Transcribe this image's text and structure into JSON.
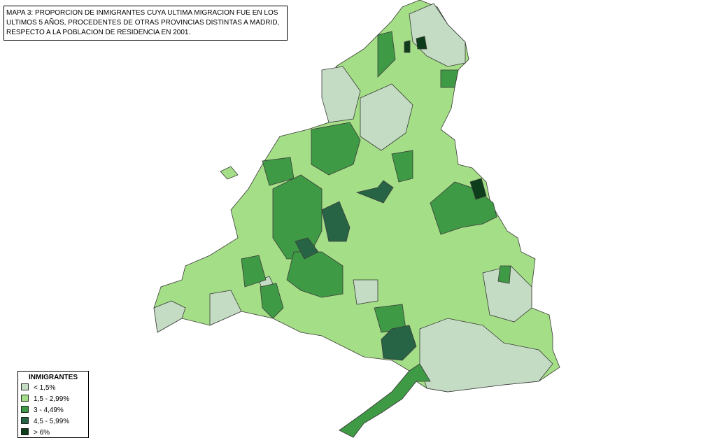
{
  "title": [
    "MAPA 3: PROPORCION DE INMIGRANTES CUYA ULTIMA MIGRACION FUE EN LOS",
    "ULTIMOS 5 AÑOS, PROCEDENTES DE OTRAS PROVINCIAS DISTINTAS A MADRID,",
    "RESPECTO A LA POBLACION DE RESIDENCIA EN 2001."
  ],
  "legend": {
    "title": "INMIGRANTES",
    "items": [
      {
        "label": "< 1,5%",
        "color": "#c4dcc4"
      },
      {
        "label": "1,5 - 2,99%",
        "color": "#a4de86"
      },
      {
        "label": "3 - 4,49%",
        "color": "#3f9a45"
      },
      {
        "label": "4,5 - 5,99%",
        "color": "#276445"
      },
      {
        "label": "> 6%",
        "color": "#0e3d1c"
      }
    ]
  }
}
